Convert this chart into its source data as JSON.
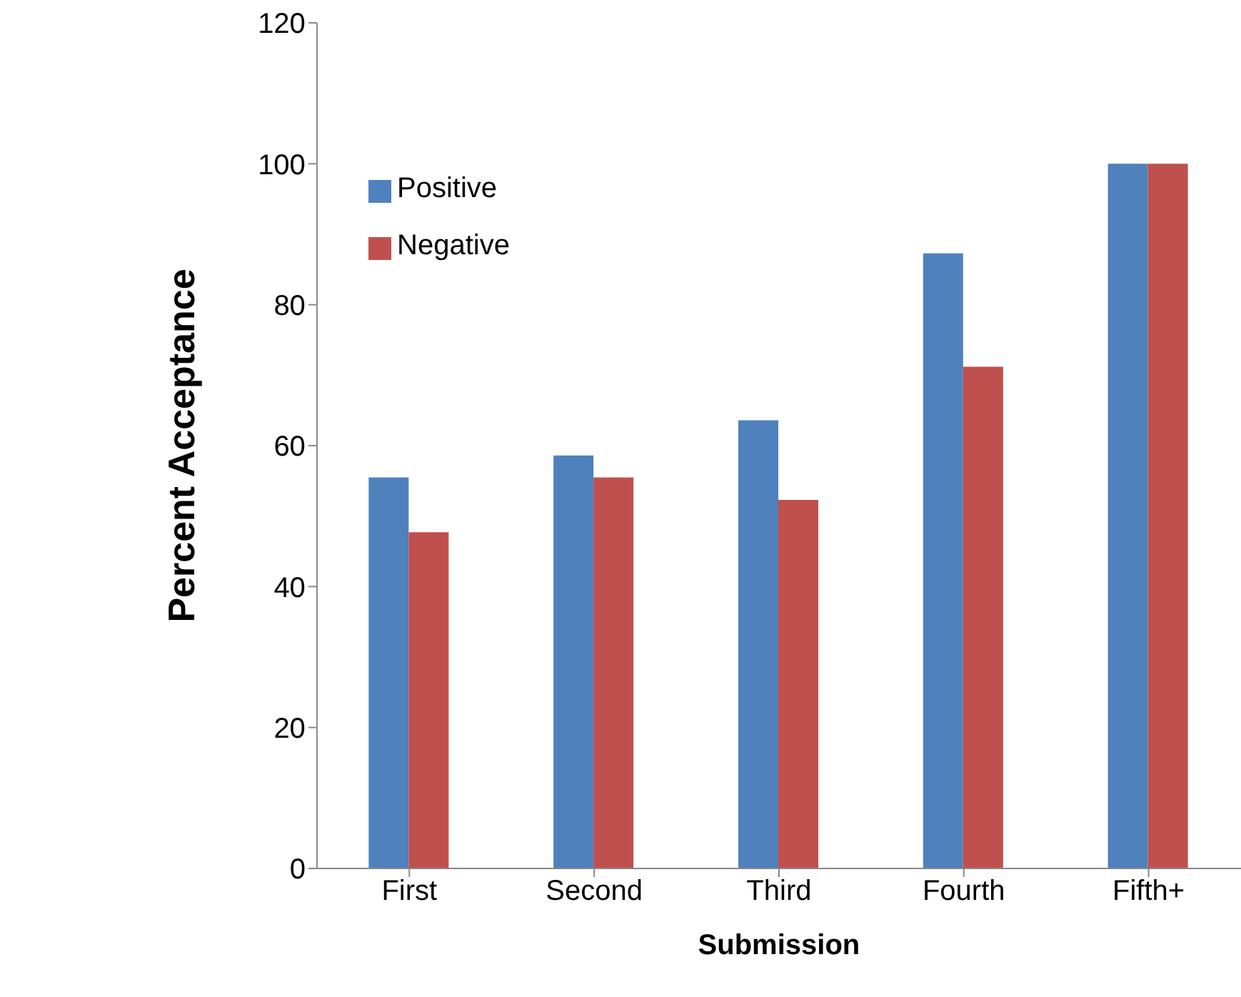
{
  "chart_data": {
    "type": "bar",
    "xlabel": "Submission",
    "ylabel": "Percent Acceptance",
    "categories": [
      "First",
      "Second",
      "Third",
      "Fourth",
      "Fifth+"
    ],
    "series": [
      {
        "name": "Positive",
        "color": "#4f81bd",
        "values": [
          55.5,
          58.6,
          63.6,
          87.3,
          100
        ]
      },
      {
        "name": "Negative",
        "color": "#c0504d",
        "values": [
          47.7,
          55.5,
          52.3,
          71.2,
          100
        ]
      }
    ],
    "ylim": [
      0,
      120
    ],
    "yticks": [
      0,
      20,
      40,
      60,
      80,
      100,
      120
    ],
    "grid": false,
    "legend": "top left"
  }
}
